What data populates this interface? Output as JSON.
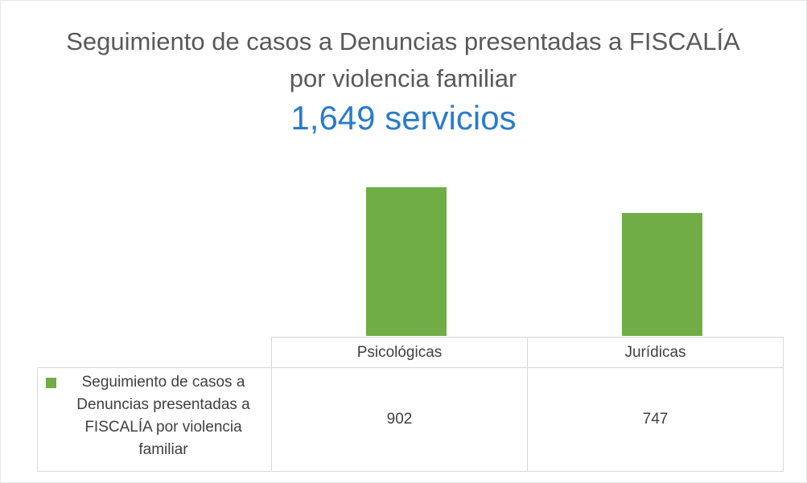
{
  "chart_data": {
    "type": "bar",
    "title": "Seguimiento de casos a Denuncias presentadas a FISCALÍA por violencia familiar",
    "subtitle": "1,649 servicios",
    "categories": [
      "Psicológicas",
      "Jurídicas"
    ],
    "series": [
      {
        "name": "Seguimiento de casos a Denuncias presentadas a FISCALÍA por violencia familiar",
        "color": "#70ad47",
        "values": [
          902,
          747
        ]
      }
    ],
    "ylim": [
      0,
      1000
    ]
  }
}
